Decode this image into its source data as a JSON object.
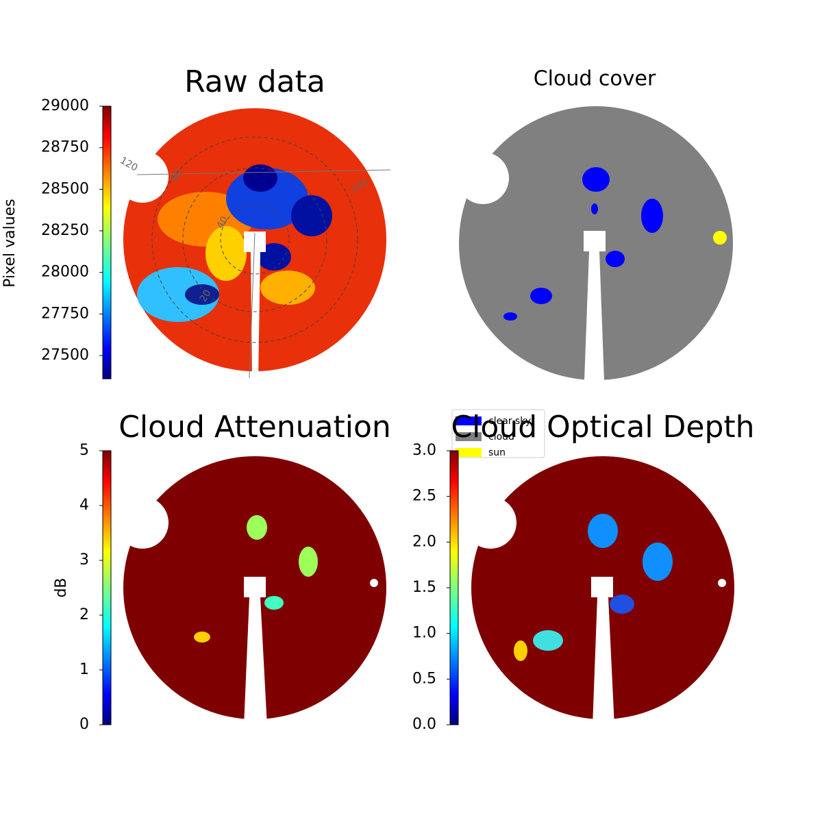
{
  "chart_data": [
    {
      "type": "image",
      "title": "Raw data",
      "colorbar_label": "Pixel values",
      "clim": [
        27360,
        29000
      ],
      "cticks": [
        27500,
        27750,
        28000,
        28250,
        28500,
        28750,
        29000
      ],
      "annotations": [
        "120",
        "80",
        "40",
        "20",
        "240"
      ]
    },
    {
      "type": "image",
      "title": "Cloud cover",
      "legend": [
        {
          "name": "clear sky",
          "color": "#0000ff"
        },
        {
          "name": "cloud",
          "color": "#808080"
        },
        {
          "name": "sun",
          "color": "#ffff00"
        }
      ]
    },
    {
      "type": "image",
      "title": "Cloud Attenuation",
      "colorbar_label": "dB",
      "clim": [
        0,
        5
      ],
      "cticks": [
        0,
        1,
        2,
        3,
        4,
        5
      ]
    },
    {
      "type": "image",
      "title": "Cloud Optical Depth",
      "clim": [
        0,
        3
      ],
      "cticks": [
        {
          "value": 0,
          "label": "0.0"
        },
        {
          "value": 0.5,
          "label": "0.5"
        },
        {
          "value": 1,
          "label": "1.0"
        },
        {
          "value": 1.5,
          "label": "1.5"
        },
        {
          "value": 2,
          "label": "2.0"
        },
        {
          "value": 2.5,
          "label": "2.5"
        },
        {
          "value": 3,
          "label": "3.0"
        }
      ]
    }
  ]
}
